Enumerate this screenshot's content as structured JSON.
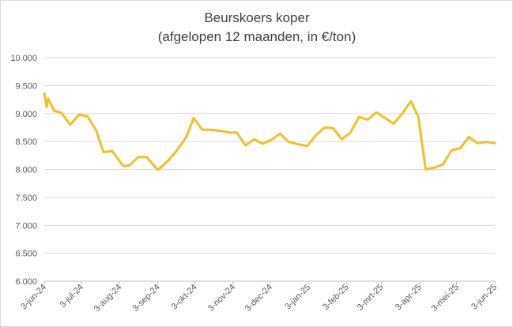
{
  "chart_data": {
    "type": "line",
    "title": "Beurskoers koper",
    "subtitle": "(afgelopen 12 maanden, in €/ton)",
    "xlabel": "",
    "ylabel": "",
    "ylim": [
      6000,
      10000
    ],
    "y_ticks": [
      6000,
      6500,
      7000,
      7500,
      8000,
      8500,
      9000,
      9500,
      10000
    ],
    "y_tick_labels": [
      "6.000",
      "6.500",
      "7.000",
      "7.500",
      "8.000",
      "8.500",
      "9.000",
      "9.500",
      "10.000"
    ],
    "grid": true,
    "legend": "none",
    "color": "#F2C026",
    "x_range": [
      "2024-06-03",
      "2025-06-03"
    ],
    "x_ticks": [
      {
        "date": "2024-06-03",
        "label": "3-jun-24"
      },
      {
        "date": "2024-07-03",
        "label": "3-jul-24"
      },
      {
        "date": "2024-08-03",
        "label": "3-aug-24"
      },
      {
        "date": "2024-09-03",
        "label": "3-sep-24"
      },
      {
        "date": "2024-10-03",
        "label": "3-okt-24"
      },
      {
        "date": "2024-11-03",
        "label": "3-nov-24"
      },
      {
        "date": "2024-12-03",
        "label": "3-dec-24"
      },
      {
        "date": "2025-01-03",
        "label": "3-jan-25"
      },
      {
        "date": "2025-02-03",
        "label": "3-feb-25"
      },
      {
        "date": "2025-03-03",
        "label": "3-mrt-25"
      },
      {
        "date": "2025-04-03",
        "label": "3-apr-25"
      },
      {
        "date": "2025-05-03",
        "label": "3-mei-25"
      },
      {
        "date": "2025-06-03",
        "label": "3-jun-25"
      }
    ],
    "series": [
      {
        "points": [
          [
            "2024-06-03",
            9360
          ],
          [
            "2024-06-05",
            9120
          ],
          [
            "2024-06-06",
            9270
          ],
          [
            "2024-06-11",
            9050
          ],
          [
            "2024-06-17",
            9010
          ],
          [
            "2024-06-24",
            8800
          ],
          [
            "2024-07-01",
            8980
          ],
          [
            "2024-07-08",
            8950
          ],
          [
            "2024-07-15",
            8700
          ],
          [
            "2024-07-21",
            8310
          ],
          [
            "2024-07-28",
            8330
          ],
          [
            "2024-08-06",
            8060
          ],
          [
            "2024-08-11",
            8070
          ],
          [
            "2024-08-18",
            8220
          ],
          [
            "2024-08-25",
            8220
          ],
          [
            "2024-09-03",
            7990
          ],
          [
            "2024-09-11",
            8150
          ],
          [
            "2024-09-18",
            8330
          ],
          [
            "2024-09-26",
            8580
          ],
          [
            "2024-10-02",
            8920
          ],
          [
            "2024-10-09",
            8710
          ],
          [
            "2024-10-16",
            8710
          ],
          [
            "2024-10-24",
            8690
          ],
          [
            "2024-10-31",
            8660
          ],
          [
            "2024-11-06",
            8660
          ],
          [
            "2024-11-13",
            8430
          ],
          [
            "2024-11-20",
            8540
          ],
          [
            "2024-11-27",
            8460
          ],
          [
            "2024-12-04",
            8530
          ],
          [
            "2024-12-11",
            8640
          ],
          [
            "2024-12-18",
            8490
          ],
          [
            "2024-12-26",
            8450
          ],
          [
            "2025-01-02",
            8420
          ],
          [
            "2025-01-09",
            8610
          ],
          [
            "2025-01-16",
            8750
          ],
          [
            "2025-01-23",
            8740
          ],
          [
            "2025-01-30",
            8540
          ],
          [
            "2025-02-06",
            8660
          ],
          [
            "2025-02-13",
            8940
          ],
          [
            "2025-02-20",
            8890
          ],
          [
            "2025-02-27",
            9020
          ],
          [
            "2025-03-06",
            8920
          ],
          [
            "2025-03-13",
            8820
          ],
          [
            "2025-03-20",
            9000
          ],
          [
            "2025-03-27",
            9220
          ],
          [
            "2025-04-02",
            8940
          ],
          [
            "2025-04-08",
            8000
          ],
          [
            "2025-04-15",
            8030
          ],
          [
            "2025-04-22",
            8090
          ],
          [
            "2025-04-29",
            8340
          ],
          [
            "2025-05-06",
            8380
          ],
          [
            "2025-05-13",
            8580
          ],
          [
            "2025-05-20",
            8470
          ],
          [
            "2025-05-27",
            8490
          ],
          [
            "2025-06-03",
            8470
          ]
        ]
      }
    ]
  }
}
